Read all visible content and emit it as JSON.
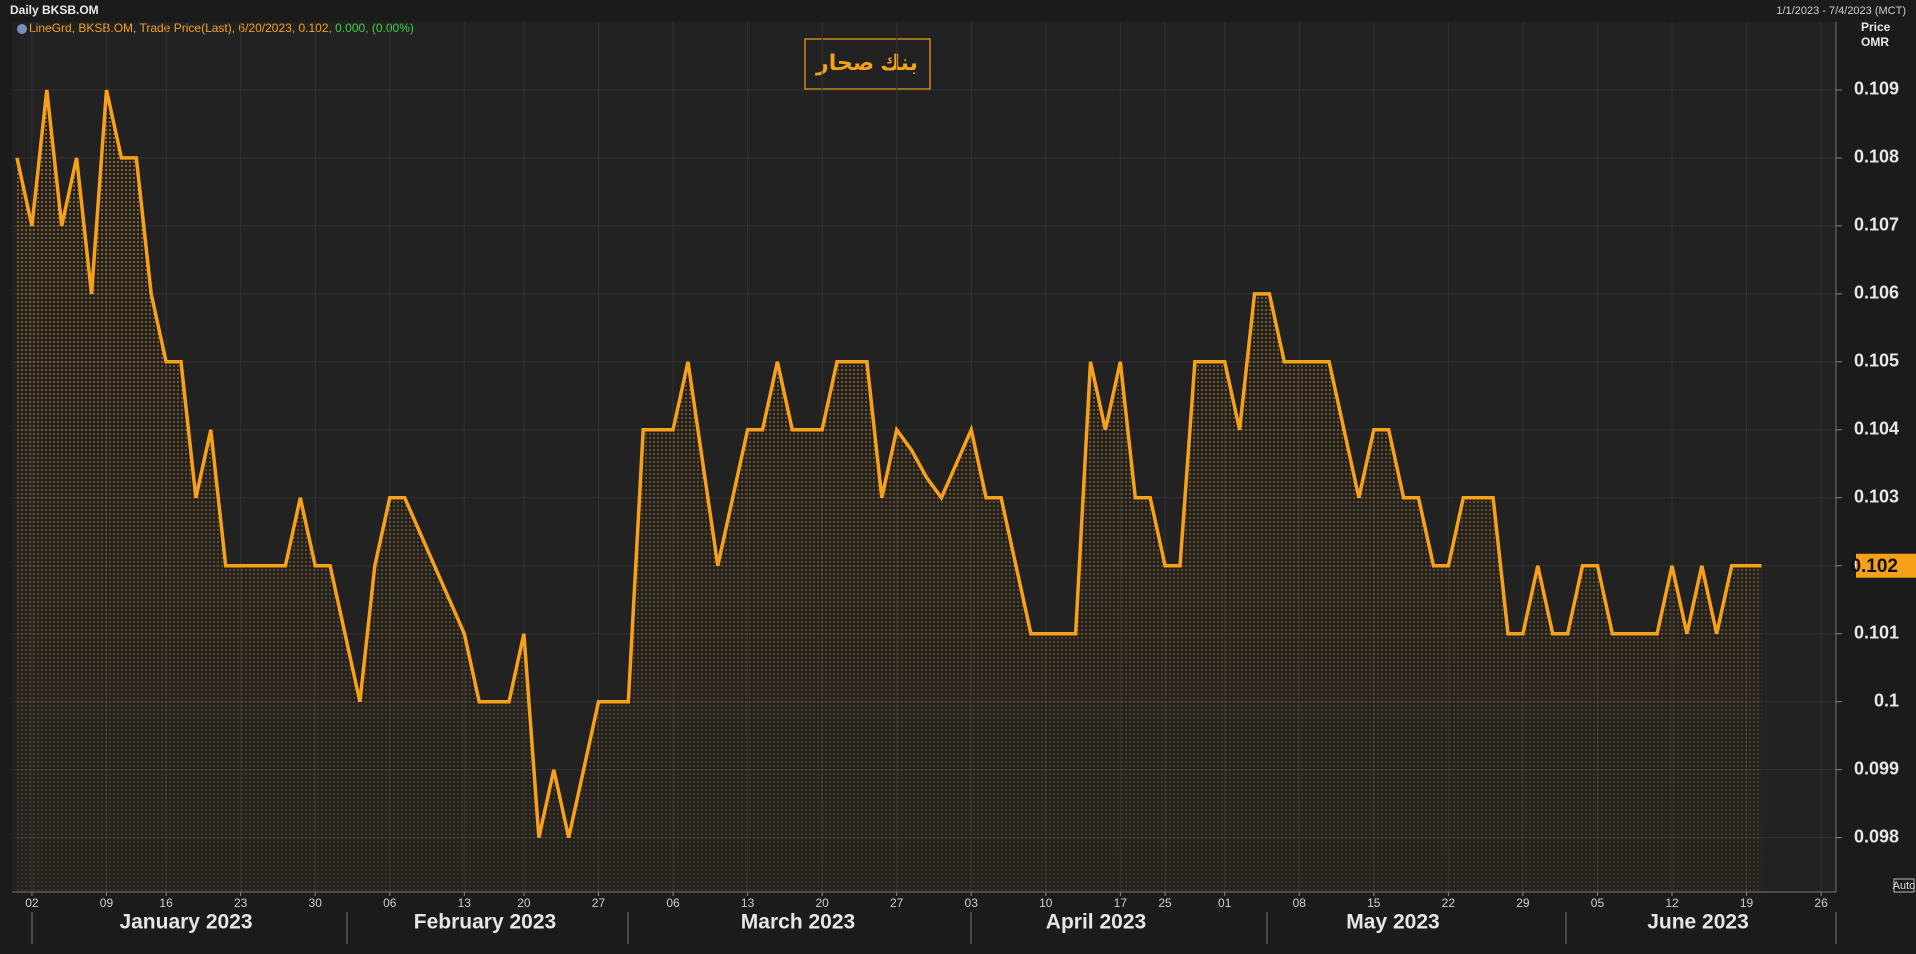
{
  "chart_data": {
    "type": "line",
    "header": "Daily BKSB.OM",
    "date_range": "1/1/2023 - 7/4/2023 (MCT)",
    "legend_parts": [
      "LineGrd, BKSB.OM, Trade Price(Last), 6/20/2023, 0.102, ",
      "0.000, (0.00%)"
    ],
    "title": "بنك صحار",
    "y_axis_label": [
      "Price",
      "OMR"
    ],
    "scale_mode": "Auto",
    "month_labels": [
      "January 2023",
      "February 2023",
      "March 2023",
      "April 2023",
      "May 2023",
      "June 2023"
    ],
    "categories": [
      null,
      "02",
      null,
      null,
      null,
      null,
      "09",
      null,
      null,
      null,
      "16",
      null,
      null,
      null,
      null,
      "23",
      null,
      null,
      null,
      null,
      "30",
      null,
      null,
      null,
      null,
      "06",
      null,
      null,
      null,
      null,
      "13",
      null,
      null,
      null,
      "20",
      null,
      null,
      null,
      null,
      "27",
      null,
      null,
      null,
      null,
      "06",
      null,
      null,
      null,
      null,
      "13",
      null,
      null,
      null,
      null,
      "20",
      null,
      null,
      null,
      null,
      "27",
      null,
      null,
      null,
      null,
      "03",
      null,
      null,
      null,
      null,
      "10",
      null,
      null,
      null,
      null,
      "17",
      null,
      null,
      "25",
      null,
      null,
      null,
      "01",
      null,
      null,
      null,
      null,
      "08",
      null,
      null,
      null,
      null,
      "15",
      null,
      null,
      null,
      null,
      "22",
      null,
      null,
      null,
      null,
      "29",
      null,
      null,
      null,
      null,
      "05",
      null,
      null,
      null,
      null,
      "12",
      null,
      null,
      null,
      null,
      "19",
      null,
      null,
      null,
      null,
      "26"
    ],
    "series": [
      {
        "name": "BKSB.OM",
        "color": "#f7a11a",
        "values": [
          0.108,
          0.107,
          0.109,
          0.107,
          0.108,
          0.106,
          0.109,
          0.108,
          0.108,
          0.106,
          0.105,
          0.105,
          0.103,
          0.104,
          0.102,
          0.102,
          0.102,
          0.102,
          0.102,
          0.103,
          0.102,
          0.102,
          0.101,
          0.1,
          0.102,
          0.103,
          0.103,
          0.1025,
          0.102,
          0.1015,
          0.101,
          0.1,
          0.1,
          0.1,
          0.101,
          0.098,
          0.099,
          0.098,
          0.099,
          0.1,
          0.1,
          0.1,
          0.104,
          0.104,
          0.104,
          0.105,
          0.1035,
          0.102,
          0.103,
          0.104,
          0.104,
          0.105,
          0.104,
          0.104,
          0.104,
          0.105,
          0.105,
          0.105,
          0.103,
          0.104,
          0.1037,
          0.1033,
          0.103,
          0.1035,
          0.104,
          0.103,
          0.103,
          0.102,
          0.101,
          0.101,
          0.101,
          0.101,
          0.105,
          0.104,
          0.105,
          0.103,
          0.103,
          0.102,
          0.102,
          0.105,
          0.105,
          0.105,
          0.104,
          0.106,
          0.106,
          0.105,
          0.105,
          0.105,
          0.105,
          0.104,
          0.103,
          0.104,
          0.104,
          0.103,
          0.103,
          0.102,
          0.102,
          0.103,
          0.103,
          0.103,
          0.101,
          0.101,
          0.102,
          0.101,
          0.101,
          0.102,
          0.102,
          0.101,
          0.101,
          0.101,
          0.101,
          0.102,
          0.101,
          0.102,
          0.101,
          0.102,
          0.102,
          0.102,
          null,
          null,
          null,
          null
        ]
      }
    ],
    "ylim": [
      0.0972,
      0.11
    ],
    "yticks": [
      0.098,
      0.099,
      0.1,
      0.101,
      0.102,
      0.103,
      0.104,
      0.105,
      0.106,
      0.107,
      0.108,
      0.109
    ],
    "last_value_index": 117,
    "grid": true
  }
}
